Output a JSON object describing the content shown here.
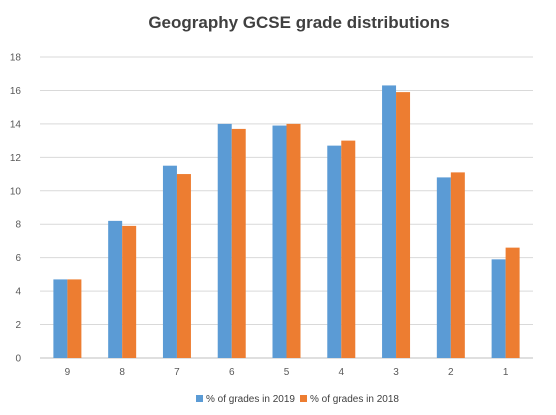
{
  "chart_data": {
    "type": "bar",
    "title": "Geography GCSE grade distributions",
    "xlabel": "",
    "ylabel": "",
    "categories": [
      "9",
      "8",
      "7",
      "6",
      "5",
      "4",
      "3",
      "2",
      "1"
    ],
    "series": [
      {
        "name": "% of grades in 2019",
        "color": "#5B9BD5",
        "values": [
          4.7,
          8.2,
          11.5,
          14.0,
          13.9,
          12.7,
          16.3,
          10.8,
          5.9
        ]
      },
      {
        "name": "% of grades in 2018",
        "color": "#ED7D31",
        "values": [
          4.7,
          7.9,
          11.0,
          13.7,
          14.0,
          13.0,
          15.9,
          11.1,
          6.6
        ]
      }
    ],
    "ylim": [
      0,
      18
    ],
    "yticks": [
      0,
      2,
      4,
      6,
      8,
      10,
      12,
      14,
      16,
      18
    ],
    "grid": true,
    "legend_position": "bottom"
  }
}
